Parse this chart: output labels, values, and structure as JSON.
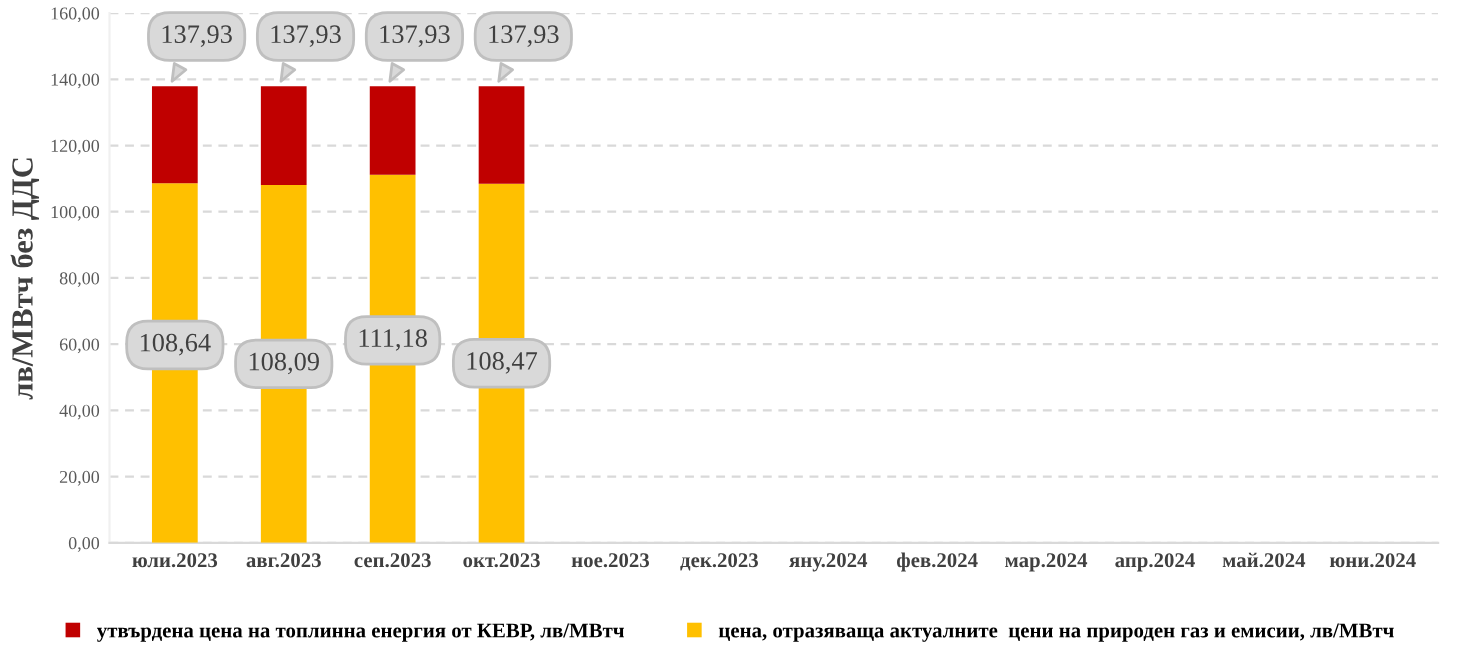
{
  "chart_data": {
    "type": "bar",
    "stacked": true,
    "ylabel": "лв/МВтч без ДДС",
    "categories": [
      "юли.2023",
      "авг.2023",
      "сеп.2023",
      "окт.2023",
      "ное.2023",
      "дек.2023",
      "яну.2024",
      "фев.2024",
      "мар.2024",
      "апр.2024",
      "май.2024",
      "юни.2024"
    ],
    "series": [
      {
        "name": "цена, отразяваща актуалните  цени на природен газ и емисии, лв/МВтч",
        "color": "#ffc000",
        "values": [
          108.64,
          108.09,
          111.18,
          108.47,
          null,
          null,
          null,
          null,
          null,
          null,
          null,
          null
        ],
        "value_labels": [
          "108,64",
          "108,09",
          "111,18",
          "108,47",
          null,
          null,
          null,
          null,
          null,
          null,
          null,
          null
        ]
      },
      {
        "name": "утвърдена цена на топлинна енергия от КЕВР, лв/МВтч",
        "color": "#c00000",
        "values": [
          29.29,
          29.84,
          26.75,
          29.46,
          null,
          null,
          null,
          null,
          null,
          null,
          null,
          null
        ]
      }
    ],
    "totals": [
      "137,93",
      "137,93",
      "137,93",
      "137,93",
      null,
      null,
      null,
      null,
      null,
      null,
      null,
      null
    ],
    "ylim": [
      0,
      160
    ],
    "yticks": [
      {
        "value": 0,
        "label": "0,00"
      },
      {
        "value": 20,
        "label": "20,00"
      },
      {
        "value": 40,
        "label": "40,00"
      },
      {
        "value": 60,
        "label": "60,00"
      },
      {
        "value": 80,
        "label": "80,00"
      },
      {
        "value": 100,
        "label": "100,00"
      },
      {
        "value": 120,
        "label": "120,00"
      },
      {
        "value": 140,
        "label": "140,00"
      },
      {
        "value": 160,
        "label": "160,00"
      }
    ],
    "grid": "y",
    "legend": "bottom"
  }
}
